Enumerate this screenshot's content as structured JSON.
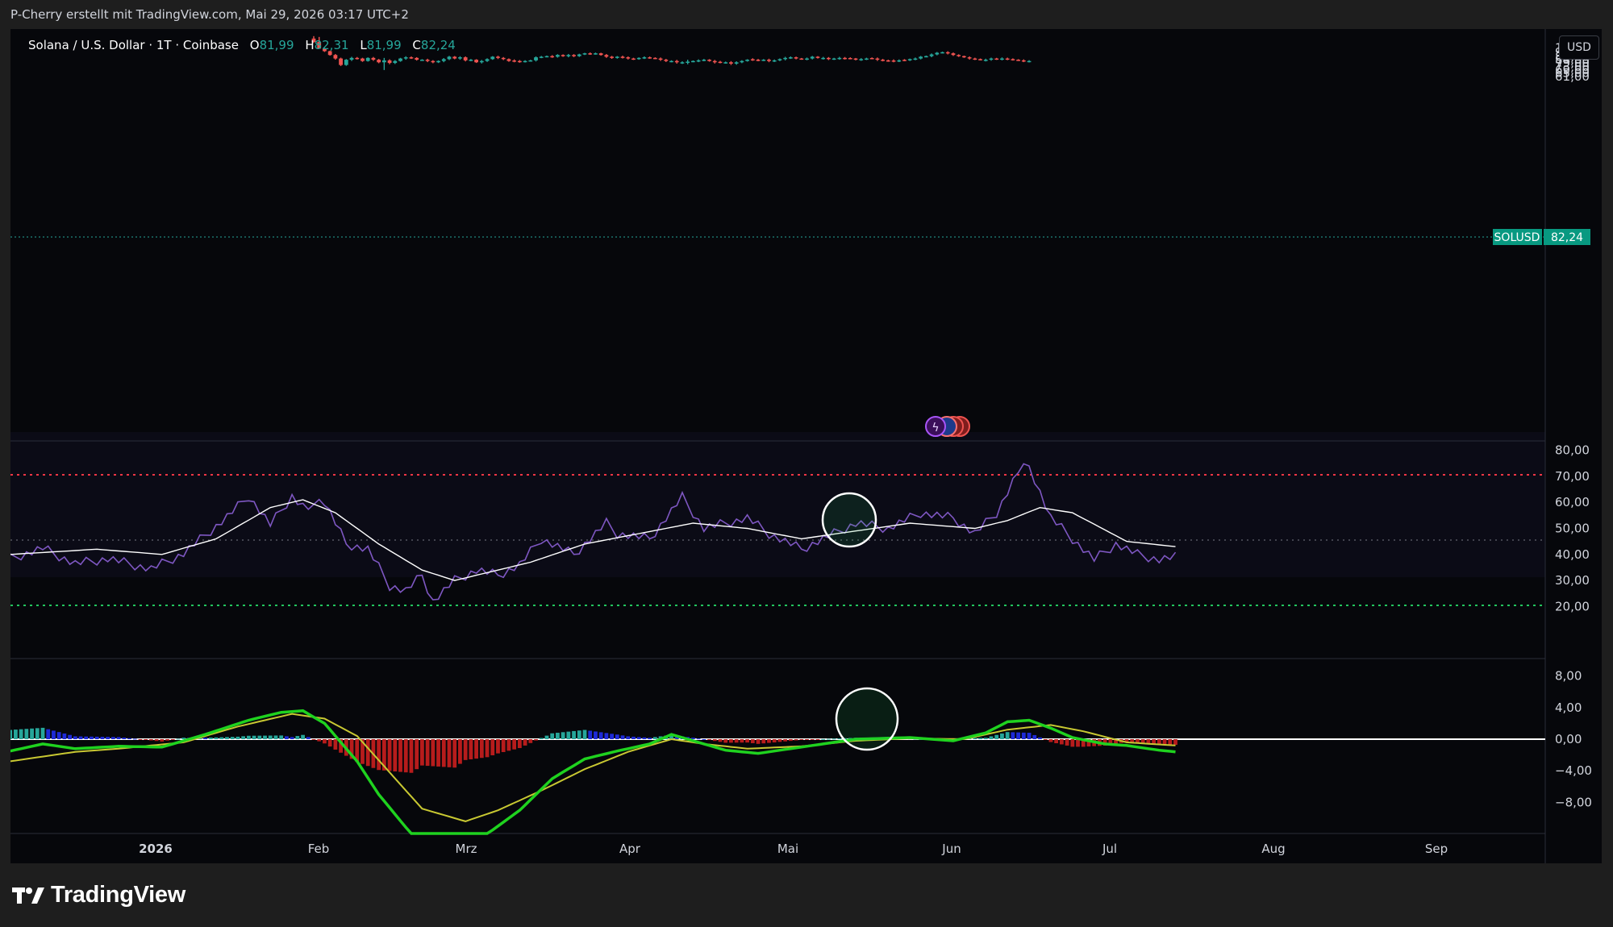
{
  "header": {
    "attribution": "P-Cherry erstellt mit TradingView.com, Mai 29, 2026 03:17 UTC+2"
  },
  "symbol": {
    "name": "Solana / U.S. Dollar · 1T · Coinbase",
    "open_label": "O",
    "open": "81,99",
    "high_label": "H",
    "high": "82,31",
    "low_label": "L",
    "low": "81,99",
    "close_label": "C",
    "close": "82,24"
  },
  "currency": "USD",
  "price_tag": {
    "symbol": "SOLUSD",
    "value": "82,24"
  },
  "logo": {
    "text": "TradingView"
  },
  "colors": {
    "up": "#26a69a",
    "down": "#ef5350",
    "background": "#06070b",
    "rsi": "#7e57c2",
    "rsi_ma": "#ffffff",
    "macd": "#1fd21f",
    "signal": "#c8c832",
    "hist_pos_strong": "#26a69a",
    "hist_pos_weak": "#1e2ad8",
    "hist_neg": "#b71c1c"
  },
  "chart_data": [
    {
      "type": "candlestick",
      "title": "Solana / U.S. Dollar · 1T · Coinbase",
      "price_axis_ticks": [
        "105,00",
        "97,00",
        "89,00",
        "84,00",
        "79,00",
        "73,00",
        "69,00",
        "65,00",
        "61,00"
      ],
      "x_tick_labels": [
        "2026",
        "Feb",
        "Mrz",
        "Apr",
        "Mai",
        "Jun",
        "Jul",
        "Aug",
        "Sep"
      ],
      "last_price": 82.24,
      "closes": [
        118,
        104,
        99,
        92,
        86,
        76,
        84,
        87,
        86,
        82,
        87,
        84,
        80,
        83,
        79,
        82,
        86,
        88,
        87,
        84,
        84,
        82,
        80,
        82,
        85,
        89,
        86,
        88,
        83,
        84,
        80,
        82,
        85,
        89,
        87,
        85,
        82,
        82,
        81,
        82,
        83,
        88,
        89,
        90,
        89,
        92,
        90,
        92,
        90,
        93,
        95,
        94,
        95,
        92,
        89,
        87,
        89,
        88,
        86,
        85,
        87,
        88,
        87,
        86,
        84,
        82,
        82,
        80,
        80,
        81,
        82,
        83,
        84,
        82,
        80,
        80,
        80,
        78,
        80,
        82,
        84,
        84,
        83,
        84,
        82,
        83,
        85,
        87,
        88,
        86,
        85,
        86,
        89,
        87,
        87,
        85,
        86,
        87,
        86,
        86,
        84,
        85,
        86,
        86,
        84,
        83,
        82,
        82,
        83,
        83,
        85,
        86,
        89,
        90,
        93,
        96,
        97,
        95,
        92,
        90,
        88,
        86,
        85,
        84,
        84,
        86,
        85,
        86,
        85,
        84,
        83,
        82,
        82
      ],
      "rsi_axis_ticks": [
        "80,00",
        "70,00",
        "60,00",
        "50,00",
        "40,00",
        "30,00",
        "20,00"
      ],
      "rsi_levels": {
        "upper": 70,
        "middle": 50,
        "lower": 30
      },
      "macd_axis_ticks": [
        "8,00",
        "4,00",
        "0,00",
        "−4,00",
        "−8,00"
      ]
    }
  ]
}
